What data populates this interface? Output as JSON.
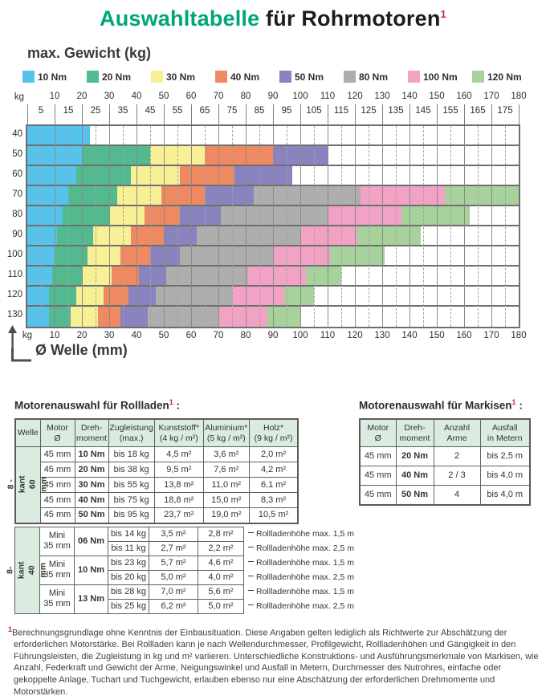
{
  "title": {
    "green": "Auswahltabelle",
    "black": " für Rohrmotoren",
    "sup": "1"
  },
  "chart_data": {
    "type": "bar",
    "subtype": "horizontal-range-bands",
    "title": "max. Gewicht (kg)",
    "xlabel": "Ø Welle (mm)",
    "ylabel": "kg",
    "grid": true,
    "legend_position": "top",
    "x_axis": {
      "min": 0,
      "max": 180,
      "major_ticks": [
        10,
        20,
        30,
        40,
        50,
        60,
        70,
        80,
        90,
        100,
        110,
        120,
        130,
        140,
        150,
        160,
        170,
        180
      ],
      "minor_ticks": [
        5,
        15,
        25,
        35,
        45,
        55,
        65,
        75,
        85,
        95,
        105,
        115,
        125,
        135,
        145,
        155,
        165,
        175
      ]
    },
    "y_categories": [
      40,
      50,
      60,
      70,
      80,
      90,
      100,
      110,
      120,
      130
    ],
    "legend": [
      {
        "label": "10 Nm",
        "color": "#56c3ec"
      },
      {
        "label": "20 Nm",
        "color": "#53ba90"
      },
      {
        "label": "30 Nm",
        "color": "#f8f095"
      },
      {
        "label": "40 Nm",
        "color": "#ee8961"
      },
      {
        "label": "50 Nm",
        "color": "#8983bf"
      },
      {
        "label": "80 Nm",
        "color": "#aeaeae"
      },
      {
        "label": "100 Nm",
        "color": "#f2a2c5"
      },
      {
        "label": "120 Nm",
        "color": "#a8d29c"
      }
    ],
    "rows": [
      {
        "kg": 40,
        "bands": [
          {
            "torque": "10 Nm",
            "from_mm": 0,
            "to_mm": 23
          }
        ]
      },
      {
        "kg": 50,
        "bands": [
          {
            "torque": "10 Nm",
            "from_mm": 0,
            "to_mm": 20
          },
          {
            "torque": "20 Nm",
            "from_mm": 20,
            "to_mm": 45
          },
          {
            "torque": "30 Nm",
            "from_mm": 45,
            "to_mm": 65
          },
          {
            "torque": "40 Nm",
            "from_mm": 65,
            "to_mm": 90
          },
          {
            "torque": "50 Nm",
            "from_mm": 90,
            "to_mm": 110
          }
        ]
      },
      {
        "kg": 60,
        "bands": [
          {
            "torque": "10 Nm",
            "from_mm": 0,
            "to_mm": 18
          },
          {
            "torque": "20 Nm",
            "from_mm": 18,
            "to_mm": 38
          },
          {
            "torque": "30 Nm",
            "from_mm": 38,
            "to_mm": 56
          },
          {
            "torque": "40 Nm",
            "from_mm": 56,
            "to_mm": 76
          },
          {
            "torque": "50 Nm",
            "from_mm": 76,
            "to_mm": 97
          }
        ]
      },
      {
        "kg": 70,
        "bands": [
          {
            "torque": "10 Nm",
            "from_mm": 0,
            "to_mm": 15
          },
          {
            "torque": "20 Nm",
            "from_mm": 15,
            "to_mm": 33
          },
          {
            "torque": "30 Nm",
            "from_mm": 33,
            "to_mm": 49
          },
          {
            "torque": "40 Nm",
            "from_mm": 49,
            "to_mm": 65
          },
          {
            "torque": "50 Nm",
            "from_mm": 65,
            "to_mm": 83
          },
          {
            "torque": "80 Nm",
            "from_mm": 83,
            "to_mm": 122
          },
          {
            "torque": "100 Nm",
            "from_mm": 122,
            "to_mm": 153
          },
          {
            "torque": "120 Nm",
            "from_mm": 153,
            "to_mm": 180
          }
        ]
      },
      {
        "kg": 80,
        "bands": [
          {
            "torque": "10 Nm",
            "from_mm": 0,
            "to_mm": 13
          },
          {
            "torque": "20 Nm",
            "from_mm": 13,
            "to_mm": 30
          },
          {
            "torque": "30 Nm",
            "from_mm": 30,
            "to_mm": 43
          },
          {
            "torque": "40 Nm",
            "from_mm": 43,
            "to_mm": 56
          },
          {
            "torque": "50 Nm",
            "from_mm": 56,
            "to_mm": 71
          },
          {
            "torque": "80 Nm",
            "from_mm": 71,
            "to_mm": 110
          },
          {
            "torque": "100 Nm",
            "from_mm": 110,
            "to_mm": 137
          },
          {
            "torque": "120 Nm",
            "from_mm": 137,
            "to_mm": 162
          }
        ]
      },
      {
        "kg": 90,
        "bands": [
          {
            "torque": "10 Nm",
            "from_mm": 0,
            "to_mm": 11
          },
          {
            "torque": "20 Nm",
            "from_mm": 11,
            "to_mm": 24
          },
          {
            "torque": "30 Nm",
            "from_mm": 24,
            "to_mm": 38
          },
          {
            "torque": "40 Nm",
            "from_mm": 38,
            "to_mm": 50
          },
          {
            "torque": "50 Nm",
            "from_mm": 50,
            "to_mm": 62
          },
          {
            "torque": "80 Nm",
            "from_mm": 62,
            "to_mm": 100
          },
          {
            "torque": "100 Nm",
            "from_mm": 100,
            "to_mm": 121
          },
          {
            "torque": "120 Nm",
            "from_mm": 121,
            "to_mm": 144
          }
        ]
      },
      {
        "kg": 100,
        "bands": [
          {
            "torque": "10 Nm",
            "from_mm": 0,
            "to_mm": 10
          },
          {
            "torque": "20 Nm",
            "from_mm": 10,
            "to_mm": 22
          },
          {
            "torque": "30 Nm",
            "from_mm": 22,
            "to_mm": 34
          },
          {
            "torque": "40 Nm",
            "from_mm": 34,
            "to_mm": 45
          },
          {
            "torque": "50 Nm",
            "from_mm": 45,
            "to_mm": 56
          },
          {
            "torque": "80 Nm",
            "from_mm": 56,
            "to_mm": 90
          },
          {
            "torque": "100 Nm",
            "from_mm": 90,
            "to_mm": 111
          },
          {
            "torque": "120 Nm",
            "from_mm": 111,
            "to_mm": 131
          }
        ]
      },
      {
        "kg": 110,
        "bands": [
          {
            "torque": "10 Nm",
            "from_mm": 0,
            "to_mm": 9
          },
          {
            "torque": "20 Nm",
            "from_mm": 9,
            "to_mm": 20
          },
          {
            "torque": "30 Nm",
            "from_mm": 20,
            "to_mm": 31
          },
          {
            "torque": "40 Nm",
            "from_mm": 31,
            "to_mm": 41
          },
          {
            "torque": "50 Nm",
            "from_mm": 41,
            "to_mm": 51
          },
          {
            "torque": "80 Nm",
            "from_mm": 51,
            "to_mm": 81
          },
          {
            "torque": "100 Nm",
            "from_mm": 81,
            "to_mm": 102
          },
          {
            "torque": "120 Nm",
            "from_mm": 102,
            "to_mm": 115
          }
        ]
      },
      {
        "kg": 120,
        "bands": [
          {
            "torque": "10 Nm",
            "from_mm": 0,
            "to_mm": 8
          },
          {
            "torque": "20 Nm",
            "from_mm": 8,
            "to_mm": 18
          },
          {
            "torque": "30 Nm",
            "from_mm": 18,
            "to_mm": 28
          },
          {
            "torque": "40 Nm",
            "from_mm": 28,
            "to_mm": 37
          },
          {
            "torque": "50 Nm",
            "from_mm": 37,
            "to_mm": 47
          },
          {
            "torque": "80 Nm",
            "from_mm": 47,
            "to_mm": 75
          },
          {
            "torque": "100 Nm",
            "from_mm": 75,
            "to_mm": 94
          },
          {
            "torque": "120 Nm",
            "from_mm": 94,
            "to_mm": 105
          }
        ]
      },
      {
        "kg": 130,
        "bands": [
          {
            "torque": "10 Nm",
            "from_mm": 0,
            "to_mm": 8
          },
          {
            "torque": "20 Nm",
            "from_mm": 8,
            "to_mm": 16
          },
          {
            "torque": "30 Nm",
            "from_mm": 16,
            "to_mm": 26
          },
          {
            "torque": "40 Nm",
            "from_mm": 26,
            "to_mm": 34
          },
          {
            "torque": "50 Nm",
            "from_mm": 34,
            "to_mm": 44
          },
          {
            "torque": "80 Nm",
            "from_mm": 44,
            "to_mm": 70
          },
          {
            "torque": "100 Nm",
            "from_mm": 70,
            "to_mm": 88
          },
          {
            "torque": "120 Nm",
            "from_mm": 88,
            "to_mm": 100
          }
        ]
      }
    ]
  },
  "tables": {
    "rollladen": {
      "title": "Motorenauswahl für Rollladen",
      "sup": "1",
      "colon": " :",
      "headers": [
        "Welle",
        "Motor\nØ",
        "Dreh-\nmoment",
        "Zugleistung\n(max.)",
        "Kunststoff*\n(4 kg / m²)",
        "Aluminium*\n(5 kg / m²)",
        "Holz*\n(9 kg / m²)"
      ],
      "group1": {
        "welle_label": "8 - kant\n60 mm",
        "rows": [
          {
            "motor": "45 mm",
            "torque": "10 Nm",
            "zug": "bis 18 kg",
            "kunststoff": "4,5 m²",
            "aluminium": "3,6 m²",
            "holz": "2,0 m²"
          },
          {
            "motor": "45 mm",
            "torque": "20 Nm",
            "zug": "bis 38 kg",
            "kunststoff": "9,5 m²",
            "aluminium": "7,6 m²",
            "holz": "4,2 m²"
          },
          {
            "motor": "45 mm",
            "torque": "30 Nm",
            "zug": "bis 55 kg",
            "kunststoff": "13,8 m²",
            "aluminium": "11,0 m²",
            "holz": "6,1 m²"
          },
          {
            "motor": "45 mm",
            "torque": "40 Nm",
            "zug": "bis 75 kg",
            "kunststoff": "18,8 m²",
            "aluminium": "15,0 m²",
            "holz": "8,3 m²"
          },
          {
            "motor": "45 mm",
            "torque": "50 Nm",
            "zug": "bis 95 kg",
            "kunststoff": "23,7 m²",
            "aluminium": "19,0 m²",
            "holz": "10,5 m²"
          }
        ]
      },
      "group2": {
        "welle_label": "8- kant\n40 mm",
        "motors": [
          {
            "motor": "Mini\n35 mm",
            "torque": "06 Nm",
            "rows": [
              {
                "zug": "bis 14 kg",
                "kunststoff": "3,5 m²",
                "aluminium": "2,8 m²",
                "note": "Rollladenhöhe max. 1,5 m"
              },
              {
                "zug": "bis 11 kg",
                "kunststoff": "2,7 m²",
                "aluminium": "2,2 m²",
                "note": "Rollladenhöhe max. 2,5 m"
              }
            ]
          },
          {
            "motor": "Mini\n35 mm",
            "torque": "10 Nm",
            "rows": [
              {
                "zug": "bis 23 kg",
                "kunststoff": "5,7 m²",
                "aluminium": "4,6 m²",
                "note": "Rollladenhöhe max. 1,5 m"
              },
              {
                "zug": "bis 20 kg",
                "kunststoff": "5,0 m²",
                "aluminium": "4,0 m²",
                "note": "Rollladenhöhe max. 2,5 m"
              }
            ]
          },
          {
            "motor": "Mini\n35 mm",
            "torque": "13 Nm",
            "rows": [
              {
                "zug": "bis 28 kg",
                "kunststoff": "7,0 m²",
                "aluminium": "5,6 m²",
                "note": "Rollladenhöhe max. 1,5 m"
              },
              {
                "zug": "bis 25 kg",
                "kunststoff": "6,2 m²",
                "aluminium": "5,0 m²",
                "note": "Rollladenhöhe max. 2,5 m"
              }
            ]
          }
        ]
      }
    },
    "markisen": {
      "title": "Motorenauswahl für Markisen",
      "sup": "1",
      "colon": " :",
      "headers": [
        "Motor\nØ",
        "Dreh-\nmoment",
        "Anzahl\nArme",
        "Ausfall\nin Metern"
      ],
      "rows": [
        {
          "motor": "45 mm",
          "torque": "20 Nm",
          "arme": "2",
          "ausfall": "bis 2,5 m"
        },
        {
          "motor": "45 mm",
          "torque": "40 Nm",
          "arme": "2 / 3",
          "ausfall": "bis 4,0 m"
        },
        {
          "motor": "45 mm",
          "torque": "50 Nm",
          "arme": "4",
          "ausfall": "bis 4,0 m"
        }
      ]
    }
  },
  "footnote": {
    "sup": "1",
    "text": "Berechnungsgrundlage ohne Kenntnis der Einbausituation. Diese Angaben gelten lediglich als Richtwerte zur Abschätzung der erforderlichen Motorstärke. Bei Rollladen kann je nach Wellendurchmesser, Profilgewicht, Rollladenhöhen und Gängigkeit in den Führungsleisten, die Zugleistung in kg und m² variieren. Unterschiedliche Konstruktions- und Ausführungsmerkmale von Markisen, wie Anzahl, Federkraft und Gewicht der Arme, Neigungswinkel und Ausfall in Metern, Durchmesser des Nutrohres, einfache oder gekoppelte Anlage, Tuchart und Tuchgewicht, erlauben ebenso nur eine Abschätzung der erforderlichen Drehmomente und Motorstärken."
  }
}
